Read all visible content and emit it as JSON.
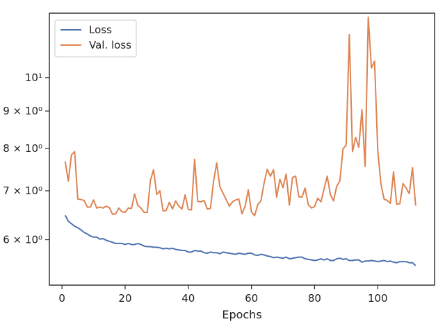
{
  "chart_data": {
    "type": "line",
    "title": "",
    "xlabel": "Epochs",
    "ylabel": "",
    "x_scale": "linear",
    "y_scale": "log",
    "xlim": [
      -4,
      118
    ],
    "ylim": [
      5.2,
      12.25
    ],
    "grid": false,
    "legend_position": "top-left",
    "x_ticks": [
      {
        "value": 0,
        "label": "0"
      },
      {
        "value": 20,
        "label": "20"
      },
      {
        "value": 40,
        "label": "40"
      },
      {
        "value": 60,
        "label": "60"
      },
      {
        "value": 80,
        "label": "80"
      },
      {
        "value": 100,
        "label": "100"
      }
    ],
    "y_ticks": [
      {
        "value": 6,
        "label": "6 × 10⁰"
      },
      {
        "value": 7,
        "label": "7 × 10⁰"
      },
      {
        "value": 8,
        "label": "8 × 10⁰"
      },
      {
        "value": 9,
        "label": "9 × 10⁰"
      },
      {
        "value": 10,
        "label": "10¹"
      }
    ],
    "x": [
      1,
      2,
      3,
      4,
      5,
      6,
      7,
      8,
      9,
      10,
      11,
      12,
      13,
      14,
      15,
      16,
      17,
      18,
      19,
      20,
      21,
      22,
      23,
      24,
      25,
      26,
      27,
      28,
      29,
      30,
      31,
      32,
      33,
      34,
      35,
      36,
      37,
      38,
      39,
      40,
      41,
      42,
      43,
      44,
      45,
      46,
      47,
      48,
      49,
      50,
      51,
      52,
      53,
      54,
      55,
      56,
      57,
      58,
      59,
      60,
      61,
      62,
      63,
      64,
      65,
      66,
      67,
      68,
      69,
      70,
      71,
      72,
      73,
      74,
      75,
      76,
      77,
      78,
      79,
      80,
      81,
      82,
      83,
      84,
      85,
      86,
      87,
      88,
      89,
      90,
      91,
      92,
      93,
      94,
      95,
      96,
      97,
      98,
      99,
      100,
      101,
      102,
      103,
      104,
      105,
      106,
      107,
      108,
      109,
      110,
      111,
      112
    ],
    "series": [
      {
        "name": "Loss",
        "color": "#4c72b0",
        "values": [
          6.48,
          6.36,
          6.31,
          6.26,
          6.23,
          6.19,
          6.14,
          6.11,
          6.07,
          6.05,
          6.05,
          6.01,
          6.02,
          5.99,
          5.97,
          5.95,
          5.93,
          5.93,
          5.93,
          5.91,
          5.93,
          5.91,
          5.91,
          5.93,
          5.91,
          5.88,
          5.87,
          5.87,
          5.86,
          5.86,
          5.85,
          5.83,
          5.84,
          5.83,
          5.84,
          5.82,
          5.81,
          5.8,
          5.8,
          5.77,
          5.77,
          5.8,
          5.79,
          5.79,
          5.76,
          5.75,
          5.77,
          5.76,
          5.76,
          5.74,
          5.77,
          5.76,
          5.75,
          5.74,
          5.73,
          5.75,
          5.74,
          5.73,
          5.75,
          5.75,
          5.72,
          5.71,
          5.73,
          5.72,
          5.7,
          5.69,
          5.67,
          5.68,
          5.67,
          5.66,
          5.68,
          5.65,
          5.66,
          5.67,
          5.68,
          5.68,
          5.65,
          5.64,
          5.63,
          5.62,
          5.63,
          5.65,
          5.63,
          5.65,
          5.62,
          5.62,
          5.65,
          5.66,
          5.64,
          5.65,
          5.62,
          5.62,
          5.63,
          5.63,
          5.59,
          5.61,
          5.61,
          5.62,
          5.61,
          5.6,
          5.61,
          5.62,
          5.6,
          5.61,
          5.59,
          5.58,
          5.6,
          5.6,
          5.6,
          5.58,
          5.58,
          5.53
        ]
      },
      {
        "name": "Val. loss",
        "color": "#dd8452",
        "values": [
          7.68,
          7.22,
          7.84,
          7.92,
          6.82,
          6.81,
          6.79,
          6.65,
          6.65,
          6.8,
          6.63,
          6.65,
          6.63,
          6.67,
          6.64,
          6.5,
          6.51,
          6.63,
          6.55,
          6.54,
          6.63,
          6.62,
          6.93,
          6.69,
          6.63,
          6.54,
          6.54,
          7.23,
          7.48,
          6.92,
          7.0,
          6.57,
          6.58,
          6.75,
          6.61,
          6.78,
          6.67,
          6.61,
          6.91,
          6.6,
          6.59,
          7.73,
          6.77,
          6.76,
          6.79,
          6.61,
          6.62,
          7.21,
          7.64,
          7.09,
          6.95,
          6.81,
          6.67,
          6.76,
          6.8,
          6.82,
          6.51,
          6.67,
          7.02,
          6.55,
          6.47,
          6.7,
          6.78,
          7.17,
          7.49,
          7.33,
          7.48,
          6.86,
          7.26,
          7.07,
          7.38,
          6.69,
          7.3,
          7.33,
          6.87,
          6.86,
          7.06,
          6.7,
          6.63,
          6.66,
          6.84,
          6.76,
          7.04,
          7.33,
          6.92,
          6.78,
          7.1,
          7.22,
          7.99,
          8.08,
          11.45,
          7.92,
          8.28,
          8.03,
          9.04,
          7.56,
          12.1,
          10.31,
          10.53,
          7.95,
          7.16,
          6.82,
          6.79,
          6.73,
          7.43,
          6.71,
          6.72,
          7.16,
          7.06,
          6.94,
          7.53,
          6.68
        ]
      }
    ]
  }
}
